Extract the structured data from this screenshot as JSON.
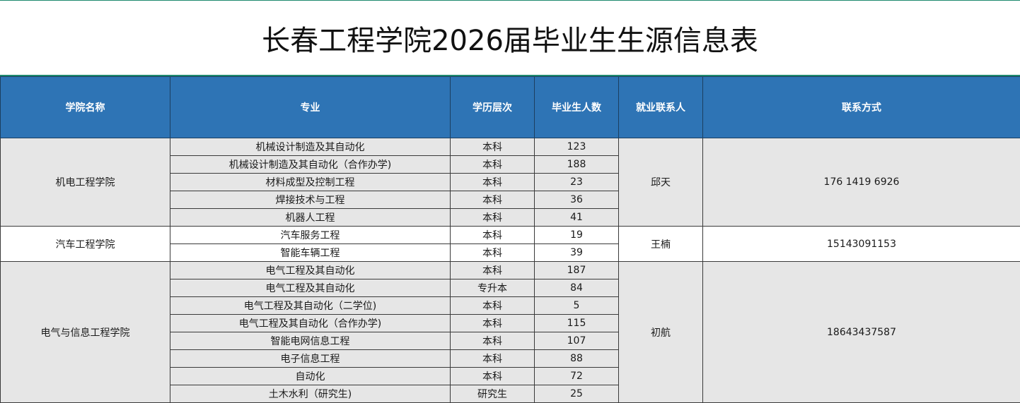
{
  "title": "长春工程学院2026届毕业生生源信息表",
  "colors": {
    "header_bg": "#2e74b5",
    "header_text": "#ffffff",
    "accent_line": "#1f8a6e",
    "shaded_row": "#e6e6e6",
    "plain_row": "#ffffff"
  },
  "table": {
    "headers": {
      "college": "学院名称",
      "major": "专业",
      "level": "学历层次",
      "count": "毕业生人数",
      "contact_person": "就业联系人",
      "contact": "联系方式"
    },
    "groups": [
      {
        "college": "机电工程学院",
        "contact_person": "邱天",
        "contact": "176 1419 6926",
        "shade": true,
        "rows": [
          {
            "major": "机械设计制造及其自动化",
            "level": "本科",
            "count": "123"
          },
          {
            "major": "机械设计制造及其自动化（合作办学)",
            "level": "本科",
            "count": "188"
          },
          {
            "major": "材料成型及控制工程",
            "level": "本科",
            "count": "23"
          },
          {
            "major": "焊接技术与工程",
            "level": "本科",
            "count": "36"
          },
          {
            "major": "机器人工程",
            "level": "本科",
            "count": "41"
          }
        ]
      },
      {
        "college": "汽车工程学院",
        "contact_person": "王楠",
        "contact": "15143091153",
        "shade": false,
        "rows": [
          {
            "major": "汽车服务工程",
            "level": "本科",
            "count": "19"
          },
          {
            "major": "智能车辆工程",
            "level": "本科",
            "count": "39"
          }
        ]
      },
      {
        "college": "电气与信息工程学院",
        "contact_person": "初航",
        "contact": "18643437587",
        "shade": true,
        "rows": [
          {
            "major": "电气工程及其自动化",
            "level": "本科",
            "count": "187"
          },
          {
            "major": "电气工程及其自动化",
            "level": "专升本",
            "count": "84"
          },
          {
            "major": "电气工程及其自动化（二学位)",
            "level": "本科",
            "count": "5"
          },
          {
            "major": "电气工程及其自动化（合作办学)",
            "level": "本科",
            "count": "115"
          },
          {
            "major": "智能电网信息工程",
            "level": "本科",
            "count": "107"
          },
          {
            "major": "电子信息工程",
            "level": "本科",
            "count": "88"
          },
          {
            "major": "自动化",
            "level": "本科",
            "count": "72"
          },
          {
            "major": "土木水利（研究生)",
            "level": "研究生",
            "count": "25"
          }
        ]
      }
    ]
  }
}
